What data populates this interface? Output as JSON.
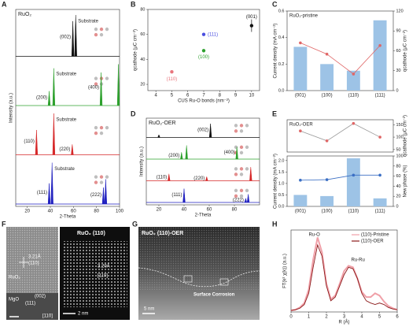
{
  "chart_data": [
    {
      "type": "xrd",
      "panel": "A",
      "sample_label": "RuO₂",
      "xlabel": "2-Theta",
      "ylabel": "Intensity (a.u.)",
      "xlim": [
        10,
        100
      ],
      "xticks": [
        20,
        40,
        60,
        80,
        100
      ],
      "ylim": [
        0,
        1
      ],
      "series": [
        {
          "color": "#111111",
          "x": [
            59.5,
            62
          ],
          "values": [
            0.85,
            1
          ],
          "labels": [
            "(002)",
            "Substrate"
          ]
        },
        {
          "color": "#2ca02c",
          "x": [
            39,
            43,
            84,
            99
          ],
          "values": [
            0.35,
            0.9,
            0.8,
            1
          ],
          "labels": [
            "(200)",
            "Substrate",
            "(400)",
            null
          ]
        },
        {
          "color": "#d62728",
          "x": [
            28,
            43,
            59
          ],
          "values": [
            0.6,
            1,
            0.25
          ],
          "labels": [
            "(110)",
            "Substrate",
            "(220)"
          ]
        },
        {
          "color": "#1f1fbf",
          "x": [
            39,
            41.5,
            86,
            88
          ],
          "values": [
            0.5,
            1,
            0.4,
            0.6
          ],
          "labels": [
            "(111)",
            "Substrate",
            "(222)",
            null
          ]
        }
      ]
    },
    {
      "type": "scatter",
      "panel": "B",
      "xlabel": "CUS Ru-O bonds (nm⁻²)",
      "ylabel": "qcathode (μC cm⁻²)",
      "xlim": [
        3.5,
        10.5
      ],
      "xticks": [
        4,
        5,
        6,
        7,
        8,
        9,
        10
      ],
      "ylim": [
        15,
        80
      ],
      "yticks": [
        20,
        40,
        60,
        80
      ],
      "series": [
        {
          "name": "(110)",
          "color": "#e8747c",
          "x": [
            5
          ],
          "values": [
            30
          ]
        },
        {
          "name": "(100)",
          "color": "#2ca02c",
          "x": [
            7
          ],
          "values": [
            47
          ]
        },
        {
          "name": "(111)",
          "color": "#4a4fe0",
          "x": [
            7
          ],
          "values": [
            60
          ]
        },
        {
          "name": "(001)",
          "color": "#111111",
          "x": [
            10
          ],
          "values": [
            67
          ],
          "errors": [
            5
          ]
        }
      ]
    },
    {
      "type": "bar_line",
      "panel": "C",
      "title": "RuO₂-pristine",
      "ylabel": "Current density (mA cm⁻²)",
      "y2label": "qcathode (μC cm⁻²)",
      "categories": [
        "(001)",
        "(100)",
        "(110)",
        "(111)"
      ],
      "ylim": [
        0,
        0.6
      ],
      "yticks": [
        {
          "value": 0,
          "label": "0.0"
        },
        0.2,
        0.4,
        0.6
      ],
      "y2lim": [
        0,
        120
      ],
      "y2ticks": [
        0,
        30,
        60,
        90,
        120
      ],
      "series": [
        {
          "type": "bar",
          "color": "#9dc3e6",
          "values": [
            0.33,
            0.2,
            0.15,
            0.53
          ]
        },
        {
          "type": "line",
          "color": "#e06666",
          "axis": "y2",
          "values": [
            72,
            55,
            25,
            68
          ]
        }
      ]
    },
    {
      "type": "xrd",
      "panel": "D",
      "sample_label": "RuO₂-OER",
      "xlabel": "2-Theta",
      "ylabel": "Intensity (a.u.)",
      "xlim": [
        10,
        100
      ],
      "xticks": [
        20,
        40,
        60,
        80
      ],
      "ylim": [
        0,
        1
      ],
      "series": [
        {
          "color": "#111111",
          "x": [
            20,
            61
          ],
          "values": [
            0.2,
            1
          ],
          "labels": [
            null,
            "(002)"
          ]
        },
        {
          "color": "#2ca02c",
          "x": [
            38,
            42,
            82
          ],
          "values": [
            0.5,
            1,
            0.9
          ],
          "labels": [
            "(200)",
            null,
            "(400)"
          ]
        },
        {
          "color": "#d62728",
          "x": [
            28,
            58,
            93
          ],
          "values": [
            0.5,
            0.3,
            1
          ],
          "labels": [
            "(110)",
            "(220)",
            null
          ]
        },
        {
          "color": "#1f1fbf",
          "x": [
            40,
            89,
            91
          ],
          "values": [
            1,
            0.3,
            0.6
          ],
          "labels": [
            "(111)",
            "(222)",
            null
          ]
        }
      ]
    },
    {
      "type": "bar_line_split",
      "panel": "E",
      "title": "RuO₂-OER",
      "categories": [
        "(001)",
        "(100)",
        "(110)",
        "(111)"
      ],
      "ylabel": "Current density (mA cm⁻²)",
      "y2label": "New phase (%)",
      "y3label": "qcathode (μC cm⁻²)",
      "ylim": [
        0,
        2.2
      ],
      "yticks": [
        {
          "value": 0,
          "label": "0.0"
        },
        0.5,
        {
          "value": 1,
          "label": "1.0"
        },
        1.5,
        {
          "value": 2,
          "label": "2.0"
        }
      ],
      "y2lim": [
        0,
        100
      ],
      "y2ticks": [
        0,
        20,
        40,
        60,
        80,
        100
      ],
      "y3lim": [
        40,
        170
      ],
      "y3ticks": [
        50,
        100,
        150
      ],
      "series": [
        {
          "type": "bar",
          "color": "#9dc3e6",
          "values": [
            0.5,
            0.45,
            2.1,
            0.35
          ]
        },
        {
          "type": "line",
          "color": "#3b6fc4",
          "axis": "y2",
          "values": [
            52,
            53,
            62,
            62
          ]
        },
        {
          "type": "line",
          "color": "#e06666",
          "axis": "y3",
          "values": [
            125,
            85,
            155,
            100
          ]
        }
      ]
    },
    {
      "type": "line",
      "panel": "H",
      "xlabel": "R (Å)",
      "ylabel": "FT(k² χ(k)) (a.u.)",
      "xlim": [
        0,
        6
      ],
      "xticks": [
        0,
        1,
        2,
        3,
        4,
        5,
        6
      ],
      "ylim": [
        0,
        1.1
      ],
      "annotations": [
        "Ru-O",
        "Ru-Ru"
      ],
      "series": [
        {
          "name": "(110)-Pristine",
          "color": "#f0a0a8",
          "x": [
            0,
            0.25,
            0.5,
            0.75,
            1,
            1.25,
            1.5,
            1.75,
            2,
            2.25,
            2.5,
            2.75,
            3,
            3.25,
            3.5,
            3.75,
            4,
            4.25,
            4.5,
            4.75,
            5,
            5.25,
            5.5,
            5.75,
            6
          ],
          "values": [
            0.02,
            0.03,
            0.06,
            0.12,
            0.3,
            0.7,
            1.0,
            0.8,
            0.38,
            0.17,
            0.22,
            0.38,
            0.55,
            0.62,
            0.6,
            0.45,
            0.27,
            0.2,
            0.2,
            0.25,
            0.22,
            0.14,
            0.08,
            0.05,
            0.03
          ]
        },
        {
          "name": "(110)-OER",
          "color": "#8b1a1a",
          "x": [
            0,
            0.25,
            0.5,
            0.75,
            1,
            1.25,
            1.5,
            1.75,
            2,
            2.25,
            2.5,
            2.75,
            3,
            3.25,
            3.5,
            3.75,
            4,
            4.25,
            4.5,
            4.75,
            5,
            5.25,
            5.5,
            5.75,
            6
          ],
          "values": [
            0.02,
            0.03,
            0.05,
            0.1,
            0.25,
            0.6,
            0.9,
            0.75,
            0.35,
            0.15,
            0.2,
            0.35,
            0.5,
            0.6,
            0.58,
            0.45,
            0.25,
            0.15,
            0.12,
            0.1,
            0.12,
            0.1,
            0.06,
            0.04,
            0.03
          ]
        }
      ]
    }
  ],
  "images": [
    {
      "panel": "F",
      "title": "RuO₂ (110)",
      "labels": [
        "3.21Å",
        "(110)",
        "RuO₂",
        "MgO",
        "(002)",
        "(111)",
        "[110]",
        "3.20Å",
        "[110]",
        "2 nm"
      ]
    },
    {
      "panel": "G",
      "title": "RuO₂ (110)-OER",
      "labels": [
        "Surface Corrosion",
        "5 nm"
      ]
    }
  ]
}
